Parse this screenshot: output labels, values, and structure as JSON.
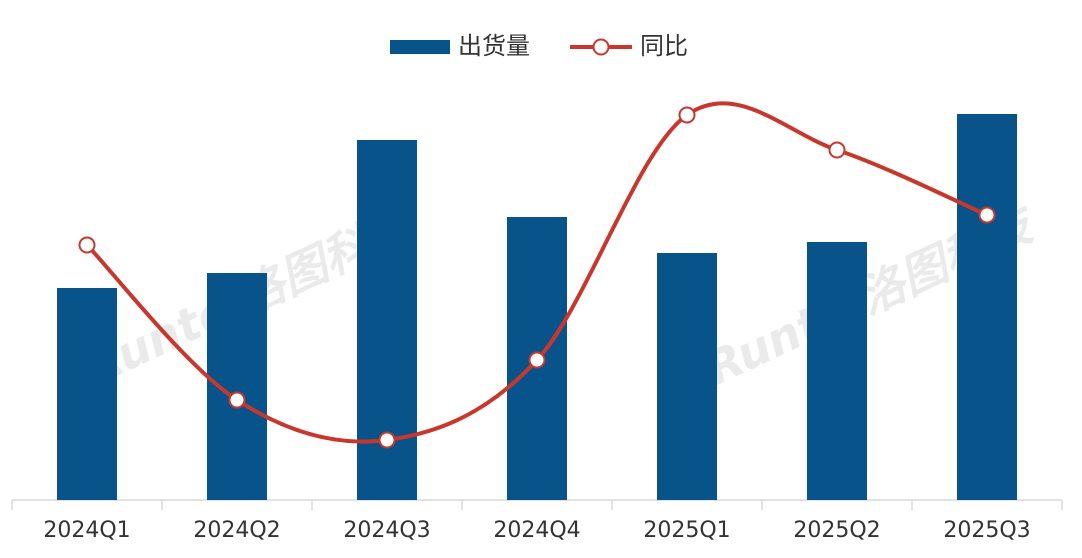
{
  "chart_data": {
    "type": "bar-line",
    "categories": [
      "2024Q1",
      "2024Q2",
      "2024Q3",
      "2024Q4",
      "2025Q1",
      "2025Q2",
      "2025Q3"
    ],
    "series": [
      {
        "name": "出货量",
        "type": "bar",
        "color": "#08548a",
        "values": [
          212,
          227,
          360,
          283,
          247,
          258,
          386
        ]
      },
      {
        "name": "同比",
        "type": "line",
        "axis": "y2",
        "color": "#c8372d",
        "values": [
          -9,
          -40,
          -48,
          -32,
          17,
          10,
          -3
        ]
      }
    ],
    "ylim": [
      0,
      450
    ],
    "y2lim": [
      -60,
      30
    ],
    "legend": "top",
    "watermark": [
      "Runto 洛图科技",
      "Runto 洛图科技"
    ]
  }
}
